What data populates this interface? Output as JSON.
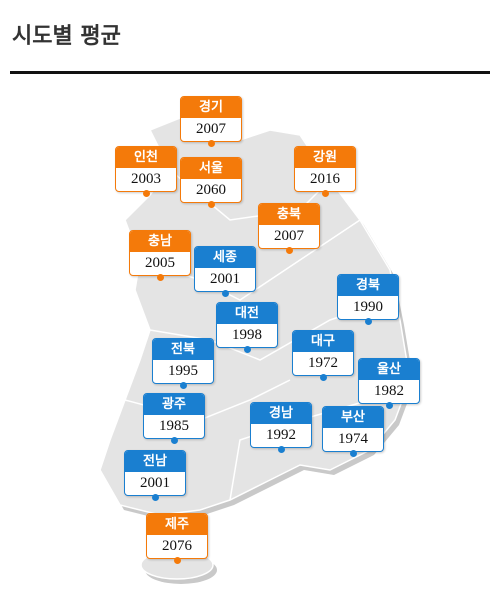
{
  "header": {
    "title": "시도별 평균"
  },
  "regions": [
    {
      "name": "경기",
      "value": 2007,
      "color": "#f47a0a"
    },
    {
      "name": "인천",
      "value": 2003,
      "color": "#f47a0a"
    },
    {
      "name": "서울",
      "value": 2060,
      "color": "#f47a0a"
    },
    {
      "name": "강원",
      "value": 2016,
      "color": "#f47a0a"
    },
    {
      "name": "충북",
      "value": 2007,
      "color": "#f47a0a"
    },
    {
      "name": "충남",
      "value": 2005,
      "color": "#f47a0a"
    },
    {
      "name": "세종",
      "value": 2001,
      "color": "#1a7fd0"
    },
    {
      "name": "경북",
      "value": 1990,
      "color": "#1a7fd0"
    },
    {
      "name": "대전",
      "value": 1998,
      "color": "#1a7fd0"
    },
    {
      "name": "대구",
      "value": 1972,
      "color": "#1a7fd0"
    },
    {
      "name": "전북",
      "value": 1995,
      "color": "#1a7fd0"
    },
    {
      "name": "울산",
      "value": 1982,
      "color": "#1a7fd0"
    },
    {
      "name": "광주",
      "value": 1985,
      "color": "#1a7fd0"
    },
    {
      "name": "경남",
      "value": 1992,
      "color": "#1a7fd0"
    },
    {
      "name": "부산",
      "value": 1974,
      "color": "#1a7fd0"
    },
    {
      "name": "전남",
      "value": 2001,
      "color": "#1a7fd0"
    },
    {
      "name": "제주",
      "value": 2076,
      "color": "#f47a0a"
    }
  ]
}
